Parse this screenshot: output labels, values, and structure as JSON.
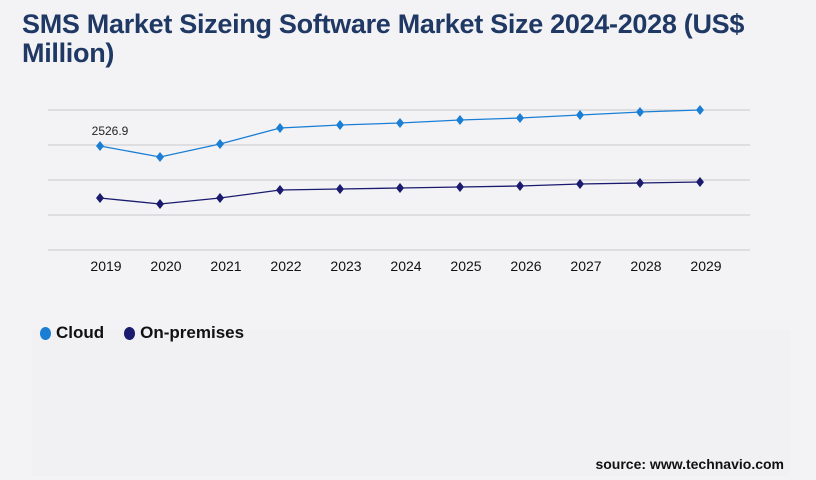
{
  "title": "SMS Market Sizeing Software Market Size 2024-2028 (US$ Million)",
  "source": "source: www.technavio.com",
  "chart_data": {
    "type": "line",
    "title": "SMS Market Sizeing Software Market Size 2024-2028 (US$ Million)",
    "categories": [
      "2019",
      "2020",
      "2021",
      "2022",
      "2023",
      "2024",
      "2025",
      "2026",
      "2027",
      "2028",
      "2029"
    ],
    "series": [
      {
        "name": "Cloud",
        "color": "#1a7fd4",
        "values": [
          2526.9,
          2260,
          2576,
          2964,
          3037,
          3086,
          3159,
          3207,
          3280,
          3353,
          3402
        ]
      },
      {
        "name": "On-premises",
        "color": "#1a1a6e",
        "values": [
          1263,
          1118,
          1263,
          1458,
          1482,
          1506,
          1531,
          1555,
          1604,
          1628,
          1652
        ]
      }
    ],
    "data_labels": [
      {
        "series": "Cloud",
        "category": "2019",
        "text": "2526.9"
      }
    ],
    "ylim": [
      0,
      3402
    ],
    "grid": true,
    "legend": "bottom-left",
    "xlabel": "",
    "ylabel": ""
  }
}
